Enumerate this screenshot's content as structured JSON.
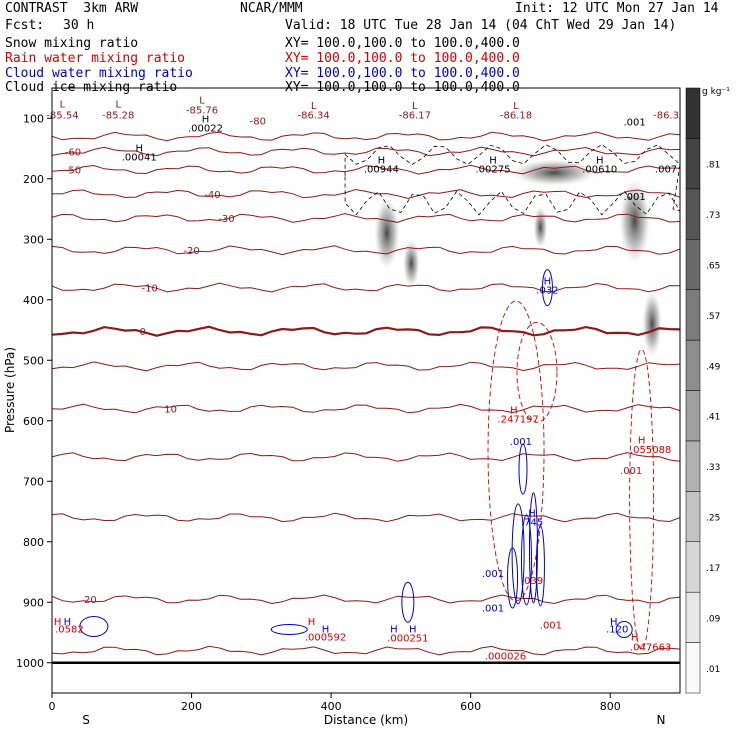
{
  "header": {
    "model": "CONTRAST  3km ARW",
    "center": "NCAR/MMM",
    "init": "Init: 12 UTC Mon 27 Jan 14",
    "fcst_label": "Fcst:",
    "fcst_value": "30 h",
    "valid": "Valid: 18 UTC Tue 28 Jan 14 (04 ChT Wed 29 Jan 14)"
  },
  "legend": [
    {
      "name": "Snow mixing ratio",
      "xy": "XY= 100.0,100.0 to 100.0,400.0",
      "color": "#000000"
    },
    {
      "name": "Rain water mixing ratio",
      "xy": "XY= 100.0,100.0 to 100.0,400.0",
      "color": "#d40000"
    },
    {
      "name": "Cloud water mixing ratio",
      "xy": "XY= 100.0,100.0 to 100.0,400.0",
      "color": "#0000cc"
    },
    {
      "name": "Cloud ice mixing ratio",
      "xy": "XY= 100.0,100.0 to 100.0,400.0",
      "color": "#000000"
    }
  ],
  "chart_data": {
    "type": "cross-section",
    "xlabel": "Distance (km)",
    "ylabel": "Pressure (hPa)",
    "xlim": [
      0,
      900
    ],
    "ylim": [
      1050,
      50
    ],
    "xticks": [
      0,
      200,
      400,
      600,
      800
    ],
    "yticks": [
      100,
      200,
      300,
      400,
      500,
      600,
      700,
      800,
      900,
      1000
    ],
    "endpoints": {
      "left": "S",
      "right": "N"
    },
    "colorbar": {
      "unit": "g kg⁻¹",
      "levels": [
        ".01",
        ".09",
        ".17",
        ".25",
        ".33",
        ".41",
        ".49",
        ".57",
        ".65",
        ".73",
        ".81"
      ]
    },
    "temperature_contours": [
      {
        "label": "-60",
        "p": 155
      },
      {
        "label": "-50",
        "p": 185
      },
      {
        "label": "-40",
        "p": 225
      },
      {
        "label": "-30",
        "p": 265
      },
      {
        "label": "-20",
        "p": 318
      },
      {
        "label": "-10",
        "p": 380
      },
      {
        "label": "0",
        "p": 452
      },
      {
        "label": "10",
        "p": 580
      },
      {
        "label": "20",
        "p": 895
      }
    ],
    "annotations": [
      {
        "text": "L",
        "x": 15,
        "p": 82,
        "color": "#8b1a1a"
      },
      {
        "text": "-85.54",
        "x": 15,
        "p": 100,
        "color": "#8b1a1a"
      },
      {
        "text": "L",
        "x": 95,
        "p": 82,
        "color": "#8b1a1a"
      },
      {
        "text": "-85.28",
        "x": 95,
        "p": 100,
        "color": "#8b1a1a"
      },
      {
        "text": "L",
        "x": 215,
        "p": 76,
        "color": "#8b1a1a"
      },
      {
        "text": "-85.76",
        "x": 215,
        "p": 92,
        "color": "#8b1a1a"
      },
      {
        "text": "H",
        "x": 220,
        "p": 107,
        "color": "#000000"
      },
      {
        "text": ".00022",
        "x": 220,
        "p": 122,
        "color": "#000000"
      },
      {
        "text": "-80",
        "x": 295,
        "p": 110,
        "color": "#8b1a1a"
      },
      {
        "text": "L",
        "x": 375,
        "p": 85,
        "color": "#8b1a1a"
      },
      {
        "text": "-86.34",
        "x": 375,
        "p": 100,
        "color": "#8b1a1a"
      },
      {
        "text": "L",
        "x": 520,
        "p": 85,
        "color": "#8b1a1a"
      },
      {
        "text": "-86.17",
        "x": 520,
        "p": 100,
        "color": "#8b1a1a"
      },
      {
        "text": "L",
        "x": 665,
        "p": 85,
        "color": "#8b1a1a"
      },
      {
        "text": "-86.18",
        "x": 665,
        "p": 100,
        "color": "#8b1a1a"
      },
      {
        "text": ".001",
        "x": 835,
        "p": 112,
        "color": "#000000"
      },
      {
        "text": "-86.3",
        "x": 880,
        "p": 100,
        "color": "#8b1a1a"
      },
      {
        "text": "H",
        "x": 125,
        "p": 155,
        "color": "#000000"
      },
      {
        "text": ".00041",
        "x": 125,
        "p": 170,
        "color": "#000000"
      },
      {
        "text": "H",
        "x": 472,
        "p": 175,
        "color": "#000000"
      },
      {
        "text": ".00944",
        "x": 472,
        "p": 190,
        "color": "#000000"
      },
      {
        "text": "H",
        "x": 632,
        "p": 175,
        "color": "#000000"
      },
      {
        "text": ".00275",
        "x": 632,
        "p": 190,
        "color": "#000000"
      },
      {
        "text": "H",
        "x": 785,
        "p": 175,
        "color": "#000000"
      },
      {
        "text": ".00610",
        "x": 785,
        "p": 190,
        "color": "#000000"
      },
      {
        "text": ".007",
        "x": 880,
        "p": 190,
        "color": "#000000"
      },
      {
        "text": ".001",
        "x": 835,
        "p": 235,
        "color": "#000000"
      },
      {
        "text": "H",
        "x": 710,
        "p": 375,
        "color": "#0000cc"
      },
      {
        "text": ".032",
        "x": 710,
        "p": 390,
        "color": "#0000cc"
      },
      {
        "text": "H",
        "x": 662,
        "p": 588,
        "color": "#d40000"
      },
      {
        "text": ".247197",
        "x": 668,
        "p": 603,
        "color": "#d40000"
      },
      {
        "text": ".001",
        "x": 672,
        "p": 640,
        "color": "#0000cc"
      },
      {
        "text": "H",
        "x": 845,
        "p": 638,
        "color": "#d40000"
      },
      {
        "text": ".055088",
        "x": 858,
        "p": 653,
        "color": "#d40000"
      },
      {
        "text": ".001",
        "x": 830,
        "p": 688,
        "color": "#d40000"
      },
      {
        "text": "H",
        "x": 688,
        "p": 758,
        "color": "#0000cc"
      },
      {
        "text": ".745",
        "x": 688,
        "p": 773,
        "color": "#0000cc"
      },
      {
        "text": ".001",
        "x": 632,
        "p": 858,
        "color": "#0000cc"
      },
      {
        "text": ".039",
        "x": 688,
        "p": 870,
        "color": "#d40000"
      },
      {
        "text": ".001",
        "x": 632,
        "p": 915,
        "color": "#0000cc"
      },
      {
        "text": ".001",
        "x": 715,
        "p": 943,
        "color": "#d40000"
      },
      {
        "text": "H",
        "x": 8,
        "p": 938,
        "color": "#d40000"
      },
      {
        "text": "H",
        "x": 22,
        "p": 938,
        "color": "#0000cc"
      },
      {
        "text": ".0582",
        "x": 25,
        "p": 950,
        "color": "#d40000"
      },
      {
        "text": "H",
        "x": 372,
        "p": 938,
        "color": "#d40000"
      },
      {
        "text": "H",
        "x": 392,
        "p": 950,
        "color": "#0000cc"
      },
      {
        "text": ".000592",
        "x": 392,
        "p": 963,
        "color": "#d40000"
      },
      {
        "text": "H",
        "x": 490,
        "p": 950,
        "color": "#0000cc"
      },
      {
        "text": "H",
        "x": 517,
        "p": 950,
        "color": "#0000cc"
      },
      {
        "text": ".000251",
        "x": 510,
        "p": 965,
        "color": "#d40000"
      },
      {
        "text": "H",
        "x": 805,
        "p": 938,
        "color": "#0000cc"
      },
      {
        "text": ".120",
        "x": 810,
        "p": 950,
        "color": "#0000cc"
      },
      {
        "text": "H",
        "x": 835,
        "p": 963,
        "color": "#d40000"
      },
      {
        "text": ".047663",
        "x": 858,
        "p": 980,
        "color": "#d40000"
      },
      {
        "text": ".000026",
        "x": 650,
        "p": 995,
        "color": "#d40000"
      }
    ]
  }
}
